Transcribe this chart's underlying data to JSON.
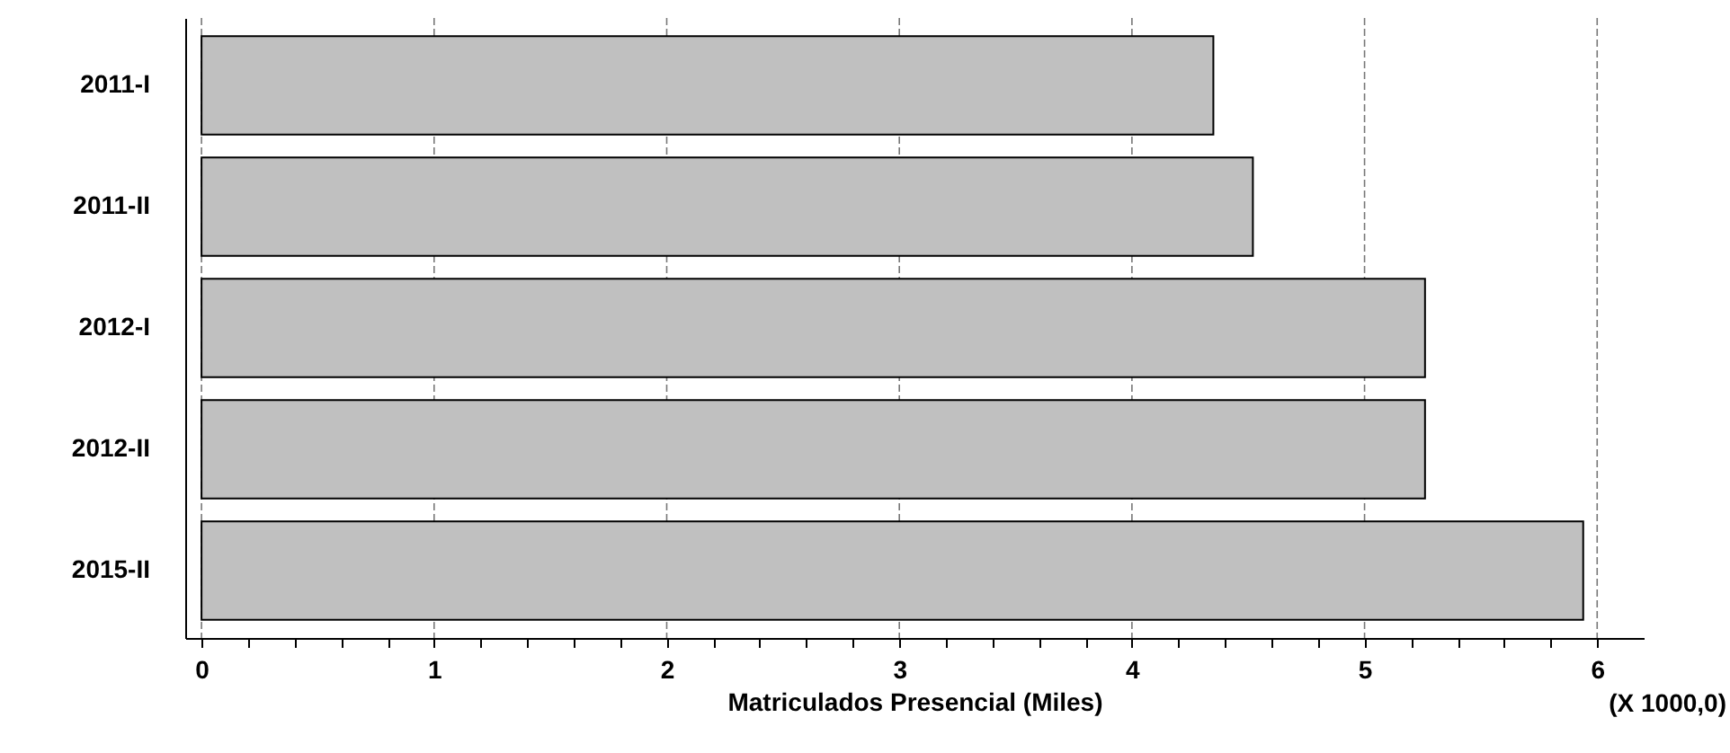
{
  "chart_data": {
    "type": "bar",
    "orientation": "horizontal",
    "xlabel": "Matriculados Presencial (Miles)",
    "categories": [
      "2011-I",
      "2011-II",
      "2012-I",
      "2012-II",
      "2015-II"
    ],
    "values": [
      4.35,
      4.52,
      5.26,
      5.26,
      5.94
    ],
    "color": "#c0c0c0",
    "xlim": [
      -0.07,
      6.2
    ],
    "xticks": [
      0,
      {
        "value": 0.2,
        "label": null
      },
      {
        "value": 0.4,
        "label": null
      },
      {
        "value": 0.6,
        "label": null
      },
      {
        "value": 0.8,
        "label": null
      },
      1,
      {
        "value": 1.2,
        "label": null
      },
      {
        "value": 1.4,
        "label": null
      },
      {
        "value": 1.6,
        "label": null
      },
      {
        "value": 1.8,
        "label": null
      },
      2,
      {
        "value": 2.2,
        "label": null
      },
      {
        "value": 2.4,
        "label": null
      },
      {
        "value": 2.6,
        "label": null
      },
      {
        "value": 2.8,
        "label": null
      },
      3,
      {
        "value": 3.2,
        "label": null
      },
      {
        "value": 3.4,
        "label": null
      },
      {
        "value": 3.6,
        "label": null
      },
      {
        "value": 3.8,
        "label": null
      },
      4,
      {
        "value": 4.2,
        "label": null
      },
      {
        "value": 4.4,
        "label": null
      },
      {
        "value": 4.6,
        "label": null
      },
      {
        "value": 4.8,
        "label": null
      },
      5,
      {
        "value": 5.2,
        "label": null
      },
      {
        "value": 5.4,
        "label": null
      },
      {
        "value": 5.6,
        "label": null
      },
      {
        "value": 5.8,
        "label": null
      },
      6
    ],
    "grid": "x",
    "annotations": [
      "(X 1000,0)"
    ]
  }
}
